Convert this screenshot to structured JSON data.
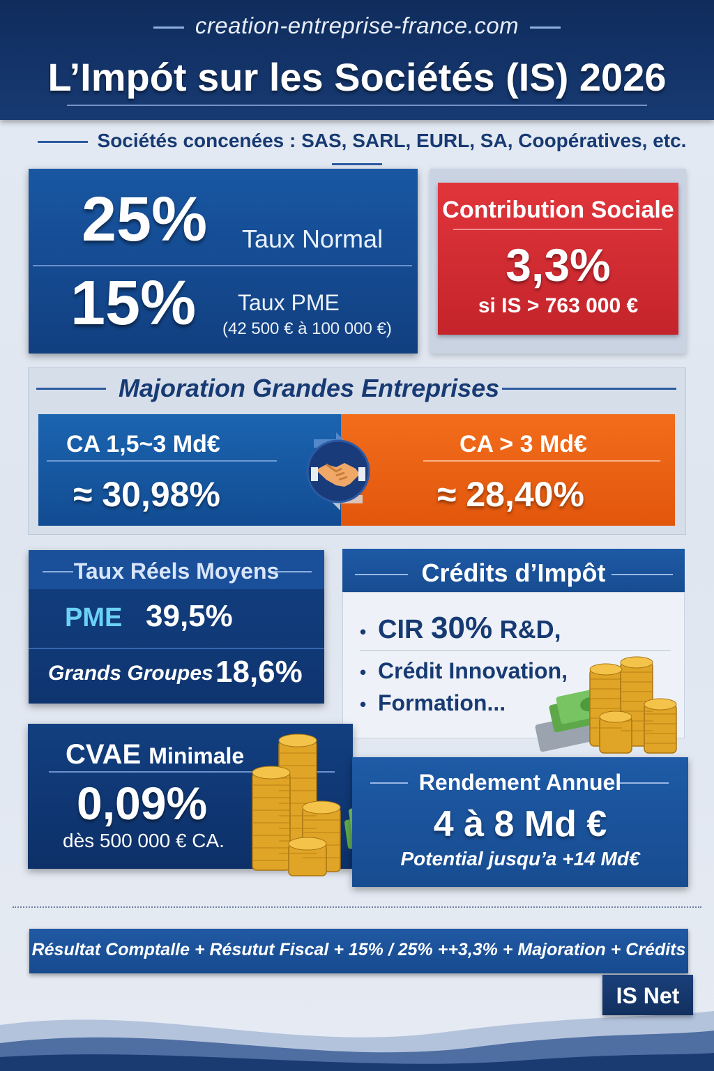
{
  "header": {
    "site": "creation-entreprise-france.com",
    "title": "L’Impót sur les Sociétés (IS) 2026"
  },
  "subtitle": "Sociétés concenées : SAS, SARL, EURL, SA, Coopératives, etc.",
  "taux": {
    "normal_value": "25%",
    "normal_label": "Taux Normal",
    "pme_value": "15%",
    "pme_label": "Taux PME",
    "pme_range": "(42 500 € à 100 000 €)"
  },
  "contribution": {
    "title": "Contribution Sociale",
    "value": "3,3%",
    "condition": "si IS > 763 000 €"
  },
  "majoration": {
    "title": "Majoration Grandes Entreprises",
    "left_label": "CA 1,5~3 Md€",
    "left_value": "≈ 30,98%",
    "right_label": "CA > 3 Md€",
    "right_value": "≈ 28,40%"
  },
  "taux_reels": {
    "title": "Taux Réels Moyens",
    "pme_label": "PME",
    "pme_value": "39,5%",
    "gg_label": "Grands Groupes",
    "gg_value": "18,6%"
  },
  "credits": {
    "title": "Crédits d’Impôt",
    "item1_prefix": "CIR",
    "item1_num": "30%",
    "item1_suffix": "R&D,",
    "item2": "Crédit Innovation,",
    "item3": "Formation..."
  },
  "cvae": {
    "title_big": "CVAE",
    "title_small": "Minimale",
    "value": "0,09%",
    "condition": "dès 500 000 € CA."
  },
  "rendement": {
    "title": "Rendement Annuel",
    "value": "4 à 8 Md €",
    "potential": "Potential jusqu’a +14 Md€"
  },
  "footer": {
    "formula": "Résultat Comptalle  +  Résutut Fiscal  +  15% / 25%  ++3,3%  +  Majoration +  Crédits",
    "result": "IS Net"
  },
  "colors": {
    "navy": "#0f2c5c",
    "blue": "#1957a3",
    "red": "#d42e34",
    "orange": "#f26d1c",
    "cyan": "#6cd2f5"
  },
  "icons": [
    "handshake-icon",
    "coin-stack-icon",
    "banknotes-icon"
  ]
}
